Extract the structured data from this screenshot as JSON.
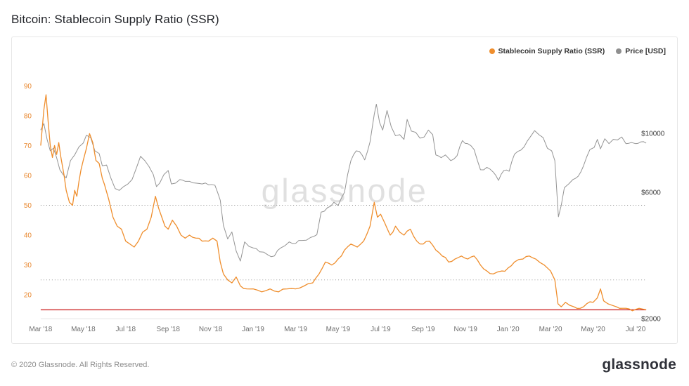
{
  "page_title": "Bitcoin: Stablecoin Supply Ratio (SSR)",
  "footer": {
    "copyright": "© 2020 Glassnode. All Rights Reserved.",
    "logo_text": "glassnode"
  },
  "chart_data": {
    "type": "line",
    "title": "Bitcoin: Stablecoin Supply Ratio (SSR)",
    "watermark": "glassnode",
    "legend": [
      {
        "label": "Stablecoin Supply Ratio (SSR)",
        "color": "#ef8e2d"
      },
      {
        "label": "Price [USD]",
        "color": "#8f8f8f"
      }
    ],
    "x_ticks": [
      "Mar '18",
      "May '18",
      "Jul '18",
      "Sep '18",
      "Nov '18",
      "Jan '19",
      "Mar '19",
      "May '19",
      "Jul '19",
      "Sep '19",
      "Nov '19",
      "Jan '20",
      "Mar '20",
      "May '20",
      "Jul '20"
    ],
    "x_months_per_tick": 2,
    "x_total_months": 28.5,
    "left_axis": {
      "label": "Stablecoin Supply Ratio (SSR)",
      "ticks": [
        90,
        80,
        70,
        60,
        50,
        40,
        30,
        20
      ],
      "range": [
        12,
        103
      ],
      "scale": "linear",
      "color": "#e8862c"
    },
    "right_axis": {
      "label": "Price [USD]",
      "ticks": [
        10000,
        6000,
        2000
      ],
      "tick_labels": [
        "$10000",
        "$6000",
        "$2000"
      ],
      "range": [
        2000,
        21200
      ],
      "scale": "log",
      "color": "#3a3a3a"
    },
    "gridlines_dotted_ssr": [
      50,
      25
    ],
    "threshold_line": {
      "ssr_value": 15,
      "color": "#cf2e2e"
    },
    "series": [
      {
        "name": "Stablecoin Supply Ratio (SSR)",
        "axis": "left",
        "color": "#ef8e2d",
        "points": [
          [
            0,
            70
          ],
          [
            0.15,
            82
          ],
          [
            0.25,
            87
          ],
          [
            0.35,
            78
          ],
          [
            0.45,
            70
          ],
          [
            0.55,
            66
          ],
          [
            0.65,
            70
          ],
          [
            0.75,
            67
          ],
          [
            0.85,
            71
          ],
          [
            0.95,
            66
          ],
          [
            1.1,
            60
          ],
          [
            1.2,
            55
          ],
          [
            1.35,
            51
          ],
          [
            1.5,
            50
          ],
          [
            1.6,
            55
          ],
          [
            1.7,
            53
          ],
          [
            1.8,
            58
          ],
          [
            1.9,
            62
          ],
          [
            2,
            65
          ],
          [
            2.15,
            69
          ],
          [
            2.3,
            74
          ],
          [
            2.45,
            71
          ],
          [
            2.6,
            65
          ],
          [
            2.75,
            64
          ],
          [
            2.9,
            59
          ],
          [
            3,
            57
          ],
          [
            3.2,
            52
          ],
          [
            3.4,
            46
          ],
          [
            3.6,
            43
          ],
          [
            3.8,
            42
          ],
          [
            4,
            38
          ],
          [
            4.2,
            37
          ],
          [
            4.4,
            36
          ],
          [
            4.6,
            38
          ],
          [
            4.8,
            41
          ],
          [
            5,
            42
          ],
          [
            5.2,
            46
          ],
          [
            5.4,
            53
          ],
          [
            5.55,
            49
          ],
          [
            5.7,
            46
          ],
          [
            5.85,
            43
          ],
          [
            6,
            42
          ],
          [
            6.2,
            45
          ],
          [
            6.4,
            43
          ],
          [
            6.6,
            40
          ],
          [
            6.8,
            39
          ],
          [
            7,
            40
          ],
          [
            7.3,
            39
          ],
          [
            7.6,
            38
          ],
          [
            7.9,
            38
          ],
          [
            8.1,
            39
          ],
          [
            8.3,
            38
          ],
          [
            8.45,
            31
          ],
          [
            8.6,
            27
          ],
          [
            8.8,
            25
          ],
          [
            9,
            24
          ],
          [
            9.2,
            26
          ],
          [
            9.4,
            23
          ],
          [
            9.7,
            22
          ],
          [
            10,
            22
          ],
          [
            10.4,
            21
          ],
          [
            10.8,
            22
          ],
          [
            11.2,
            21
          ],
          [
            11.6,
            22
          ],
          [
            12,
            22
          ],
          [
            12.4,
            23
          ],
          [
            12.8,
            24
          ],
          [
            13.1,
            27
          ],
          [
            13.4,
            31
          ],
          [
            13.7,
            30
          ],
          [
            14,
            32
          ],
          [
            14.3,
            35
          ],
          [
            14.6,
            37
          ],
          [
            14.9,
            36
          ],
          [
            15.2,
            38
          ],
          [
            15.5,
            43
          ],
          [
            15.7,
            51
          ],
          [
            15.85,
            46
          ],
          [
            16,
            47
          ],
          [
            16.2,
            44
          ],
          [
            16.45,
            40
          ],
          [
            16.7,
            43
          ],
          [
            16.9,
            41
          ],
          [
            17.1,
            40
          ],
          [
            17.4,
            42
          ],
          [
            17.7,
            38
          ],
          [
            18,
            37
          ],
          [
            18.3,
            38
          ],
          [
            18.6,
            35
          ],
          [
            18.9,
            33
          ],
          [
            19.2,
            31
          ],
          [
            19.5,
            32
          ],
          [
            19.8,
            33
          ],
          [
            20.1,
            32
          ],
          [
            20.4,
            33
          ],
          [
            20.7,
            30
          ],
          [
            21,
            28
          ],
          [
            21.3,
            27
          ],
          [
            21.7,
            28
          ],
          [
            22,
            29
          ],
          [
            22.3,
            31
          ],
          [
            22.7,
            32
          ],
          [
            23,
            33
          ],
          [
            23.3,
            32
          ],
          [
            23.7,
            30
          ],
          [
            24,
            28
          ],
          [
            24.2,
            25
          ],
          [
            24.35,
            17
          ],
          [
            24.5,
            16
          ],
          [
            24.7,
            17.5
          ],
          [
            24.9,
            16.5
          ],
          [
            25.1,
            16
          ],
          [
            25.4,
            15.5
          ],
          [
            25.7,
            17
          ],
          [
            26,
            17.5
          ],
          [
            26.2,
            19
          ],
          [
            26.35,
            22
          ],
          [
            26.5,
            18
          ],
          [
            26.7,
            17
          ],
          [
            26.9,
            16.5
          ],
          [
            27.1,
            16
          ],
          [
            27.4,
            15.5
          ],
          [
            27.7,
            15.3
          ],
          [
            28,
            15.1
          ],
          [
            28.5,
            15
          ]
        ]
      },
      {
        "name": "Price [USD]",
        "axis": "right",
        "color": "#949494",
        "points": [
          [
            0,
            10300
          ],
          [
            0.15,
            10900
          ],
          [
            0.3,
            9500
          ],
          [
            0.45,
            8600
          ],
          [
            0.6,
            8800
          ],
          [
            0.75,
            8100
          ],
          [
            0.9,
            7300
          ],
          [
            1.05,
            7000
          ],
          [
            1.2,
            6800
          ],
          [
            1.4,
            7900
          ],
          [
            1.6,
            8300
          ],
          [
            1.8,
            8900
          ],
          [
            2,
            9200
          ],
          [
            2.15,
            9850
          ],
          [
            2.35,
            9650
          ],
          [
            2.55,
            8600
          ],
          [
            2.75,
            8400
          ],
          [
            2.9,
            7550
          ],
          [
            3.1,
            7600
          ],
          [
            3.3,
            6800
          ],
          [
            3.5,
            6200
          ],
          [
            3.7,
            6100
          ],
          [
            3.9,
            6300
          ],
          [
            4.1,
            6450
          ],
          [
            4.3,
            6700
          ],
          [
            4.5,
            7400
          ],
          [
            4.7,
            8200
          ],
          [
            4.9,
            7900
          ],
          [
            5.1,
            7500
          ],
          [
            5.3,
            7000
          ],
          [
            5.45,
            6300
          ],
          [
            5.6,
            6500
          ],
          [
            5.8,
            7000
          ],
          [
            6,
            7250
          ],
          [
            6.15,
            6450
          ],
          [
            6.35,
            6500
          ],
          [
            6.55,
            6700
          ],
          [
            6.8,
            6600
          ],
          [
            7,
            6600
          ],
          [
            7.3,
            6500
          ],
          [
            7.6,
            6450
          ],
          [
            7.9,
            6400
          ],
          [
            8.2,
            6380
          ],
          [
            8.45,
            5600
          ],
          [
            8.6,
            4500
          ],
          [
            8.8,
            4000
          ],
          [
            9,
            4250
          ],
          [
            9.2,
            3600
          ],
          [
            9.4,
            3300
          ],
          [
            9.6,
            3900
          ],
          [
            9.8,
            3750
          ],
          [
            10,
            3700
          ],
          [
            10.3,
            3580
          ],
          [
            10.7,
            3480
          ],
          [
            11,
            3450
          ],
          [
            11.3,
            3700
          ],
          [
            11.7,
            3900
          ],
          [
            12,
            3850
          ],
          [
            12.3,
            3950
          ],
          [
            12.7,
            4050
          ],
          [
            13,
            4150
          ],
          [
            13.2,
            5050
          ],
          [
            13.5,
            5250
          ],
          [
            13.8,
            5500
          ],
          [
            14,
            5350
          ],
          [
            14.3,
            6000
          ],
          [
            14.6,
            7900
          ],
          [
            14.85,
            8600
          ],
          [
            15,
            8550
          ],
          [
            15.25,
            7950
          ],
          [
            15.5,
            9300
          ],
          [
            15.7,
            11800
          ],
          [
            15.8,
            12900
          ],
          [
            15.95,
            11000
          ],
          [
            16.1,
            10300
          ],
          [
            16.3,
            12200
          ],
          [
            16.5,
            10600
          ],
          [
            16.7,
            9800
          ],
          [
            16.9,
            9900
          ],
          [
            17.1,
            9500
          ],
          [
            17.25,
            11300
          ],
          [
            17.45,
            10200
          ],
          [
            17.65,
            10100
          ],
          [
            17.85,
            9600
          ],
          [
            18.05,
            9700
          ],
          [
            18.25,
            10300
          ],
          [
            18.45,
            9900
          ],
          [
            18.6,
            8300
          ],
          [
            18.85,
            8100
          ],
          [
            19.05,
            8300
          ],
          [
            19.3,
            7900
          ],
          [
            19.6,
            8250
          ],
          [
            19.85,
            9400
          ],
          [
            20.1,
            9150
          ],
          [
            20.4,
            8700
          ],
          [
            20.7,
            7300
          ],
          [
            21,
            7450
          ],
          [
            21.3,
            7150
          ],
          [
            21.55,
            6650
          ],
          [
            21.8,
            7250
          ],
          [
            22.05,
            7200
          ],
          [
            22.3,
            8350
          ],
          [
            22.6,
            8650
          ],
          [
            22.9,
            9350
          ],
          [
            23.1,
            9850
          ],
          [
            23.25,
            10250
          ],
          [
            23.45,
            9900
          ],
          [
            23.65,
            9650
          ],
          [
            23.85,
            8800
          ],
          [
            24.05,
            8600
          ],
          [
            24.2,
            7900
          ],
          [
            24.37,
            4850
          ],
          [
            24.5,
            5350
          ],
          [
            24.65,
            6250
          ],
          [
            24.85,
            6450
          ],
          [
            25.05,
            6700
          ],
          [
            25.3,
            6900
          ],
          [
            25.55,
            7550
          ],
          [
            25.85,
            8700
          ],
          [
            26.05,
            8850
          ],
          [
            26.2,
            9500
          ],
          [
            26.35,
            8750
          ],
          [
            26.55,
            9550
          ],
          [
            26.75,
            9150
          ],
          [
            26.95,
            9500
          ],
          [
            27.15,
            9450
          ],
          [
            27.35,
            9700
          ],
          [
            27.55,
            9150
          ],
          [
            27.8,
            9250
          ],
          [
            28,
            9150
          ],
          [
            28.25,
            9300
          ],
          [
            28.5,
            9200
          ]
        ]
      }
    ]
  }
}
